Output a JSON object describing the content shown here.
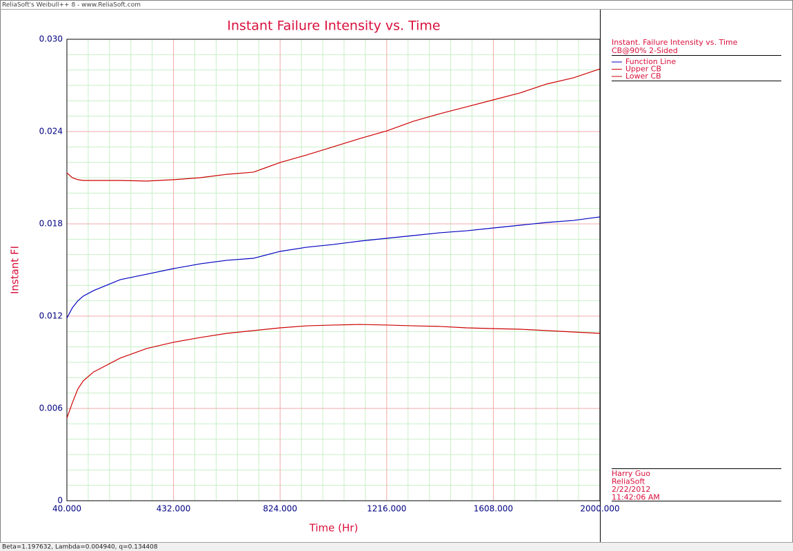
{
  "window": {
    "title": "ReliaSoft's Weibull++ 8 - www.ReliaSoft.com",
    "status": "Beta=1.197632, Lambda=0.004940, q=0.134408"
  },
  "chart_data": {
    "type": "line",
    "title": "Instant Failure Intensity vs. Time",
    "x_label": "Time (Hr)",
    "y_label": "Instant FI",
    "legend_title": "Instant. Failure Intensity vs. Time",
    "legend_subtitle": "CB@90% 2-Sided",
    "x": [
      40,
      60,
      80,
      100,
      138,
      236,
      334,
      432,
      530,
      628,
      726,
      824,
      922,
      1020,
      1118,
      1216,
      1314,
      1412,
      1510,
      1608,
      1706,
      1804,
      1902,
      2000
    ],
    "series": [
      {
        "name": "Function Line",
        "color": "#0000c0",
        "values": [
          0.01187,
          0.01254,
          0.01299,
          0.0133,
          0.01366,
          0.01437,
          0.01473,
          0.01509,
          0.0154,
          0.01563,
          0.01576,
          0.01621,
          0.01648,
          0.01666,
          0.01688,
          0.01706,
          0.01724,
          0.01742,
          0.01755,
          0.01773,
          0.01791,
          0.01809,
          0.01822,
          0.01845
        ]
      },
      {
        "name": "Upper CB",
        "color": "#cc0000",
        "values": [
          0.02131,
          0.021,
          0.02087,
          0.02082,
          0.02082,
          0.02082,
          0.02078,
          0.02087,
          0.021,
          0.02122,
          0.02136,
          0.02199,
          0.02248,
          0.02301,
          0.02355,
          0.02404,
          0.02467,
          0.02516,
          0.02561,
          0.02606,
          0.02651,
          0.02709,
          0.02749,
          0.02807
        ]
      },
      {
        "name": "Lower CB",
        "color": "#cc0000",
        "values": [
          0.00537,
          0.00636,
          0.00725,
          0.00779,
          0.00837,
          0.00927,
          0.0099,
          0.0103,
          0.01061,
          0.01088,
          0.01106,
          0.01124,
          0.01137,
          0.01142,
          0.01146,
          0.01142,
          0.01137,
          0.01133,
          0.01124,
          0.01119,
          0.01115,
          0.01106,
          0.01097,
          0.01088
        ]
      }
    ],
    "xlim": [
      40,
      2000
    ],
    "ylim": [
      0,
      0.03
    ],
    "xticks": [
      {
        "value": 40,
        "label": "40.000"
      },
      {
        "value": 432,
        "label": "432.000"
      },
      {
        "value": 824,
        "label": "824.000"
      },
      {
        "value": 1216,
        "label": "1216.000"
      },
      {
        "value": 1608,
        "label": "1608.000"
      },
      {
        "value": 2000,
        "label": "2000.000"
      }
    ],
    "yticks": [
      0,
      0.006,
      0.012,
      0.018,
      0.024,
      {
        "value": 0.03,
        "label": "0.030"
      }
    ],
    "grid": true
  },
  "info": [
    "Harry Guo",
    "ReliaSoft",
    "2/22/2012",
    "11:42:06 AM"
  ]
}
